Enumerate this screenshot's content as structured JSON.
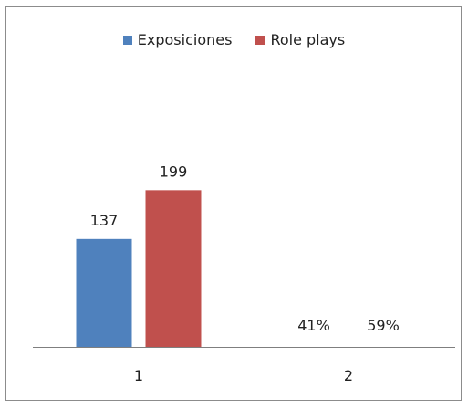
{
  "chart_data": {
    "type": "bar",
    "categories": [
      "1",
      "2"
    ],
    "series": [
      {
        "name": "Exposiciones",
        "color": "#4f81bd",
        "values": [
          137,
          41
        ],
        "labels": [
          "137",
          "41%"
        ]
      },
      {
        "name": "Role plays",
        "color": "#c0504d",
        "values": [
          199,
          59
        ],
        "labels": [
          "199",
          "59%"
        ]
      }
    ],
    "value_note": "category 2 values are percentages",
    "ylim": [
      0,
      200
    ],
    "grid": false,
    "legend_position": "top",
    "title": "",
    "xlabel": "",
    "ylabel": ""
  }
}
